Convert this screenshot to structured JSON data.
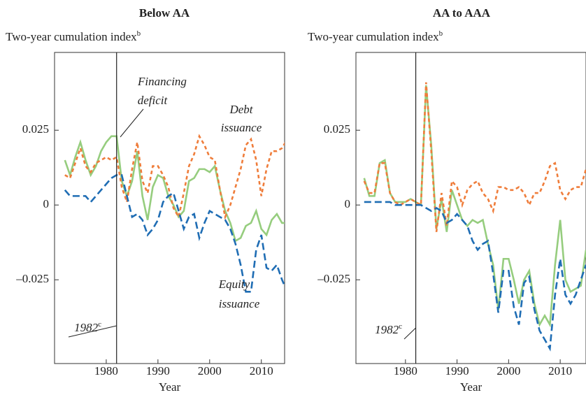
{
  "chart_data": [
    {
      "type": "line",
      "title": "Below AA",
      "y_label": "Two-year cumulation index",
      "y_label_note": "b",
      "x_label": "Year",
      "xlim": [
        1970,
        2014.5
      ],
      "ylim": [
        -0.053,
        0.051
      ],
      "xticks": [
        1980,
        1990,
        2000,
        2010
      ],
      "yticks": [
        {
          "value": -0.025,
          "label": "–0.025"
        },
        0,
        0.025
      ],
      "vline": 1982,
      "vline_note": "c",
      "x": [
        1972,
        1973,
        1974,
        1975,
        1976,
        1977,
        1978,
        1979,
        1980,
        1981,
        1982,
        1983,
        1984,
        1985,
        1986,
        1987,
        1988,
        1989,
        1990,
        1991,
        1992,
        1993,
        1994,
        1995,
        1996,
        1997,
        1998,
        1999,
        2000,
        2001,
        2002,
        2003,
        2004,
        2005,
        2006,
        2007,
        2008,
        2009,
        2010,
        2011,
        2012,
        2013,
        2014,
        2015
      ],
      "series": [
        {
          "name": [
            "Financing",
            "deficit"
          ],
          "color": "#96cd7e",
          "style": "solid",
          "values": [
            0.015,
            0.01,
            0.016,
            0.021,
            0.015,
            0.01,
            0.013,
            0.018,
            0.021,
            0.023,
            0.023,
            0.008,
            0.003,
            0.008,
            0.018,
            0.003,
            -0.005,
            0.006,
            0.01,
            0.009,
            0.003,
            0.0,
            -0.004,
            -0.002,
            0.008,
            0.009,
            0.012,
            0.012,
            0.011,
            0.013,
            0.005,
            -0.002,
            -0.006,
            -0.012,
            -0.011,
            -0.007,
            -0.006,
            -0.002,
            -0.008,
            -0.01,
            -0.005,
            -0.003,
            -0.006,
            -0.006
          ]
        },
        {
          "name": [
            "Debt",
            "issuance"
          ],
          "color": "#ef7d3b",
          "style": "short",
          "values": [
            0.01,
            0.009,
            0.014,
            0.019,
            0.013,
            0.011,
            0.014,
            0.015,
            0.016,
            0.015,
            0.016,
            0.006,
            0.001,
            0.012,
            0.021,
            0.008,
            0.004,
            0.013,
            0.013,
            0.01,
            0.006,
            -0.001,
            -0.004,
            0.004,
            0.013,
            0.017,
            0.023,
            0.02,
            0.016,
            0.015,
            0.005,
            -0.004,
            0.0,
            0.006,
            0.012,
            0.02,
            0.022,
            0.015,
            0.003,
            0.012,
            0.018,
            0.018,
            0.019,
            0.022
          ]
        },
        {
          "name": [
            "Equity",
            "issuance"
          ],
          "color": "#1f6db4",
          "style": "long",
          "values": [
            0.005,
            0.003,
            0.003,
            0.003,
            0.003,
            0.001,
            0.003,
            0.005,
            0.007,
            0.009,
            0.01,
            0.01,
            0.003,
            -0.004,
            -0.003,
            -0.005,
            -0.01,
            -0.008,
            -0.005,
            0.001,
            0.003,
            0.004,
            -0.002,
            -0.008,
            -0.004,
            -0.003,
            -0.011,
            -0.006,
            -0.002,
            -0.003,
            -0.004,
            -0.005,
            -0.008,
            -0.013,
            -0.02,
            -0.029,
            -0.029,
            -0.015,
            -0.01,
            -0.021,
            -0.022,
            -0.02,
            -0.025,
            -0.029
          ]
        }
      ]
    },
    {
      "type": "line",
      "title": "AA to AAA",
      "y_label": "Two-year cumulation index",
      "y_label_note": "b",
      "x_label": "Year",
      "xlim": [
        1970.4,
        2015
      ],
      "ylim": [
        -0.053,
        0.051
      ],
      "xticks": [
        1980,
        1990,
        2000,
        2010
      ],
      "yticks": [
        {
          "value": -0.025,
          "label": "–0.025"
        },
        0,
        0.025
      ],
      "vline": 1982,
      "vline_note": "c",
      "x": [
        1972,
        1973,
        1974,
        1975,
        1976,
        1977,
        1978,
        1979,
        1980,
        1981,
        1982,
        1983,
        1984,
        1985,
        1986,
        1987,
        1988,
        1989,
        1990,
        1991,
        1992,
        1993,
        1994,
        1995,
        1996,
        1997,
        1998,
        1999,
        2000,
        2001,
        2002,
        2003,
        2004,
        2005,
        2006,
        2007,
        2008,
        2009,
        2010,
        2011,
        2012,
        2013,
        2014,
        2015
      ],
      "series": [
        {
          "color": "#96cd7e",
          "style": "solid",
          "values": [
            0.009,
            0.003,
            0.003,
            0.014,
            0.015,
            0.004,
            0.001,
            0.001,
            0.001,
            0.002,
            0.001,
            0.0,
            0.04,
            0.02,
            -0.008,
            0.002,
            -0.009,
            0.005,
            0.0,
            -0.005,
            -0.007,
            -0.005,
            -0.006,
            -0.005,
            -0.013,
            -0.02,
            -0.035,
            -0.018,
            -0.018,
            -0.025,
            -0.033,
            -0.025,
            -0.022,
            -0.033,
            -0.04,
            -0.037,
            -0.04,
            -0.02,
            -0.005,
            -0.025,
            -0.029,
            -0.028,
            -0.027,
            -0.015
          ]
        },
        {
          "color": "#ef7d3b",
          "style": "short",
          "values": [
            0.008,
            0.004,
            0.004,
            0.014,
            0.014,
            0.004,
            0.001,
            0.0,
            0.001,
            0.002,
            0.001,
            0.0,
            0.041,
            0.018,
            -0.009,
            0.004,
            -0.007,
            0.008,
            0.006,
            0.0,
            0.005,
            0.007,
            0.008,
            0.004,
            0.002,
            -0.002,
            0.006,
            0.006,
            0.005,
            0.005,
            0.006,
            0.004,
            0.0,
            0.004,
            0.004,
            0.008,
            0.013,
            0.014,
            0.005,
            0.002,
            0.005,
            0.006,
            0.006,
            0.012
          ]
        },
        {
          "color": "#1f6db4",
          "style": "long",
          "values": [
            0.001,
            0.001,
            0.001,
            0.001,
            0.001,
            0.001,
            0.0,
            0.0,
            0.0,
            0.0,
            0.0,
            0.0,
            -0.001,
            -0.002,
            -0.001,
            -0.002,
            -0.006,
            -0.005,
            -0.003,
            -0.005,
            -0.007,
            -0.012,
            -0.015,
            -0.013,
            -0.012,
            -0.023,
            -0.036,
            -0.022,
            -0.022,
            -0.034,
            -0.04,
            -0.026,
            -0.024,
            -0.035,
            -0.042,
            -0.045,
            -0.048,
            -0.03,
            -0.018,
            -0.03,
            -0.033,
            -0.03,
            -0.025,
            -0.02
          ]
        }
      ]
    }
  ]
}
